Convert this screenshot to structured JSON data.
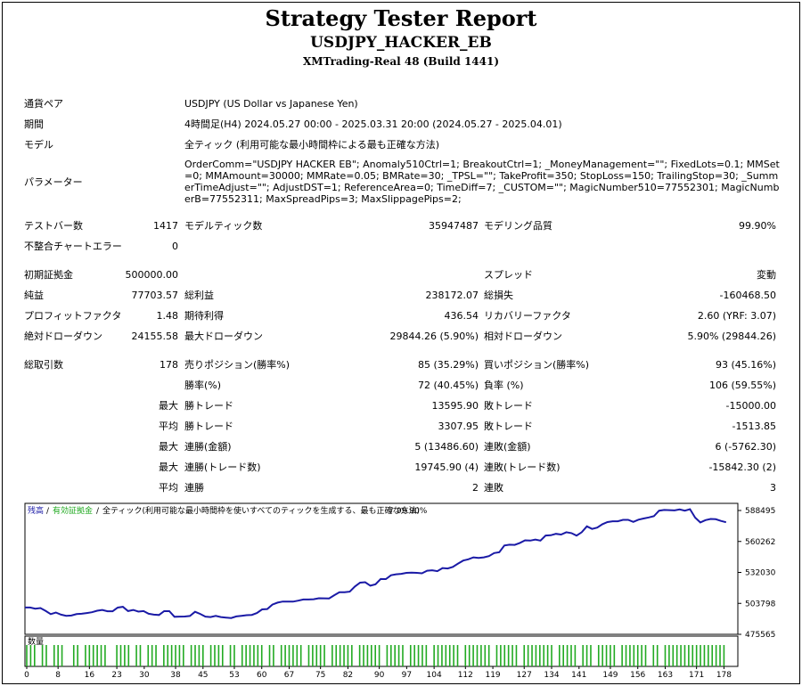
{
  "header": {
    "title": "Strategy Tester Report",
    "ea_name": "USDJPY_HACKER_EB",
    "server": "XMTrading-Real 48 (Build 1441)"
  },
  "settings": {
    "pair_label": "通貨ペア",
    "pair_value": "USDJPY (US Dollar vs Japanese Yen)",
    "period_label": "期間",
    "period_value": "4時間足(H4) 2024.05.27 00:00 - 2025.03.31 20:00 (2024.05.27 - 2025.04.01)",
    "model_label": "モデル",
    "model_value": "全ティック (利用可能な最小時間枠による最も正確な方法)",
    "params_label": "パラメーター",
    "params_value": "OrderComm=\"USDJPY HACKER EB\"; Anomaly510Ctrl=1; BreakoutCtrl=1; _MoneyManagement=\"\"; FixedLots=0.1; MMSet=0; MMAmount=30000; MMRate=0.05; BMRate=30; _TPSL=\"\"; TakeProfit=350; StopLoss=150; TrailingStop=30; _SummerTimeAdjust=\"\"; AdjustDST=1; ReferenceArea=0; TimeDiff=7; _CUSTOM=\"\"; MagicNumber510=77552301; MagicNumberB=77552311; MaxSpreadPips=3; MaxSlippagePips=2;"
  },
  "stats": {
    "bars_label": "テストバー数",
    "bars_value": "1417",
    "ticks_label": "モデルティック数",
    "ticks_value": "35947487",
    "quality_label": "モデリング品質",
    "quality_value": "99.90%",
    "errors_label": "不整合チャートエラー",
    "errors_value": "0",
    "deposit_label": "初期証拠金",
    "deposit_value": "500000.00",
    "spread_label": "スプレッド",
    "spread_value": "変動",
    "net_label": "純益",
    "net_value": "77703.57",
    "gross_profit_label": "総利益",
    "gross_profit_value": "238172.07",
    "gross_loss_label": "総損失",
    "gross_loss_value": "-160468.50",
    "pf_label": "プロフィットファクタ",
    "pf_value": "1.48",
    "expected_label": "期待利得",
    "expected_value": "436.54",
    "recovery_label": "リカバリーファクタ",
    "recovery_value": "2.60 (YRF: 3.07)",
    "abs_dd_label": "絶対ドローダウン",
    "abs_dd_value": "24155.58",
    "max_dd_label": "最大ドローダウン",
    "max_dd_value": "29844.26 (5.90%)",
    "rel_dd_label": "相対ドローダウン",
    "rel_dd_value": "5.90% (29844.26)"
  },
  "trades": {
    "total_label": "総取引数",
    "total_value": "178",
    "short_label": "売りポジション(勝率%)",
    "short_value": "85 (35.29%)",
    "long_label": "買いポジション(勝率%)",
    "long_value": "93 (45.16%)",
    "win_rate_label": "勝率(%)",
    "win_rate_value": "72 (40.45%)",
    "loss_rate_label": "負率 (%)",
    "loss_rate_value": "106 (59.55%)",
    "max_label": "最大",
    "avg_label": "平均",
    "max_win_label": "勝トレード",
    "max_win_value": "13595.90",
    "max_loss_label": "敗トレード",
    "max_loss_value": "-15000.00",
    "avg_win_label": "勝トレード",
    "avg_win_value": "3307.95",
    "avg_loss_label": "敗トレード",
    "avg_loss_value": "-1513.85",
    "cons_win_amt_label": "連勝(金額)",
    "cons_win_amt_value": "5 (13486.60)",
    "cons_loss_amt_label": "連敗(金額)",
    "cons_loss_amt_value": "6 (-5762.30)",
    "cons_win_cnt_label": "連勝(トレード数)",
    "cons_win_cnt_value": "19745.90 (4)",
    "cons_loss_cnt_label": "連敗(トレード数)",
    "cons_loss_cnt_value": "-15842.30 (2)",
    "avg_cons_win_label": "連勝",
    "avg_cons_win_value": "2",
    "avg_cons_loss_label": "連敗",
    "avg_cons_loss_value": "3"
  },
  "chart_data": {
    "type": "line",
    "legend": {
      "balance": "残高",
      "equity": "有効証拠金",
      "model": "全ティック(利用可能な最小時間枠を使いすべてのティックを生成する、最も正確な方法)",
      "quality": "99.90%"
    },
    "y_ticks": [
      "588495",
      "560262",
      "532030",
      "503798",
      "475565"
    ],
    "ylim": [
      475565,
      595000
    ],
    "xlim": [
      0,
      182
    ],
    "x_ticks": [
      "0",
      "8",
      "16",
      "23",
      "30",
      "38",
      "45",
      "53",
      "60",
      "67",
      "75",
      "82",
      "90",
      "97",
      "104",
      "112",
      "119",
      "127",
      "134",
      "141",
      "149",
      "156",
      "163",
      "171",
      "178"
    ],
    "volume_label": "数量",
    "colors": {
      "balance": "#1a1aa6",
      "equity": "#22aa22",
      "volume": "#22aa22",
      "axis": "#000000"
    },
    "balance": [
      500000,
      500000,
      499000,
      499500,
      497000,
      494000,
      495500,
      493500,
      492500,
      492700,
      494000,
      494300,
      495000,
      495700,
      497100,
      497800,
      496600,
      496600,
      499900,
      500700,
      496800,
      497800,
      496300,
      496800,
      494300,
      493500,
      493200,
      496700,
      496700,
      491600,
      491700,
      491800,
      492300,
      496100,
      494200,
      491700,
      491300,
      492400,
      491300,
      490800,
      490400,
      491900,
      492500,
      493000,
      493300,
      495000,
      498300,
      498600,
      502700,
      504500,
      505500,
      505500,
      505400,
      506300,
      507300,
      507300,
      507600,
      508500,
      508400,
      508300,
      511200,
      513900,
      513900,
      514500,
      519200,
      522700,
      523100,
      519900,
      521200,
      526000,
      525900,
      529400,
      530300,
      530700,
      531600,
      531800,
      531600,
      531200,
      533600,
      534000,
      533200,
      536000,
      535600,
      537100,
      540100,
      542800,
      544000,
      545800,
      545300,
      545800,
      546900,
      549700,
      550500,
      556600,
      557300,
      557100,
      558900,
      561300,
      561000,
      562000,
      561000,
      565700,
      565900,
      567200,
      566600,
      568700,
      567900,
      565600,
      568700,
      574000,
      571700,
      572900,
      576000,
      577900,
      578700,
      578700,
      580000,
      580000,
      578100,
      580100,
      581200,
      582200,
      583300,
      588300,
      589000,
      588800,
      588600,
      589500,
      588300,
      589700,
      582000,
      577600,
      579700,
      580800,
      580500,
      579000,
      577800
    ],
    "volume_x": [
      0,
      1,
      2,
      4,
      5,
      7,
      8,
      9,
      12,
      13,
      15,
      16,
      17,
      18,
      19,
      20,
      23,
      24,
      25,
      26,
      28,
      29,
      31,
      32,
      33,
      35,
      36,
      37,
      38,
      39,
      40,
      42,
      43,
      44,
      45,
      47,
      48,
      49,
      50,
      52,
      53,
      55,
      56,
      57,
      58,
      59,
      60,
      62,
      63,
      65,
      66,
      67,
      68,
      69,
      70,
      72,
      73,
      74,
      75,
      76,
      78,
      79,
      80,
      81,
      82,
      83,
      85,
      86,
      87,
      88,
      89,
      90,
      92,
      93,
      94,
      95,
      96,
      98,
      99,
      100,
      101,
      102,
      104,
      105,
      106,
      107,
      108,
      109,
      110,
      112,
      113,
      114,
      115,
      116,
      117,
      118,
      120,
      121,
      122,
      123,
      124,
      125,
      127,
      128,
      129,
      130,
      131,
      132,
      133,
      134,
      136,
      137,
      138,
      139,
      140,
      142,
      143,
      144,
      146,
      147,
      148,
      149,
      150,
      152,
      153,
      154,
      155,
      156,
      157,
      158,
      160,
      161,
      163,
      164,
      165,
      166,
      167,
      168,
      169,
      170,
      171,
      172,
      173,
      174,
      175,
      176,
      177,
      178
    ]
  }
}
